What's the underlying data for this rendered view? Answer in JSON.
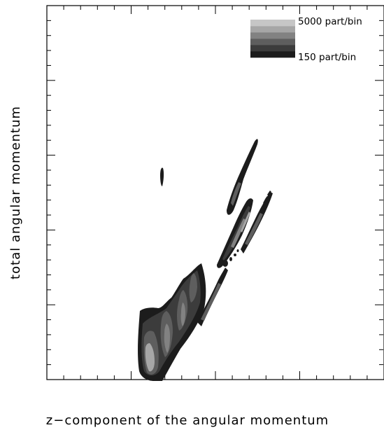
{
  "chart_data": {
    "type": "heatmap",
    "xlabel": "z−component of the angular momentum",
    "ylabel": "total angular momentum",
    "legend": {
      "placement": "top-right",
      "max_label": "5000 part/bin",
      "min_label": "150 part/bin",
      "levels": [
        150,
        500,
        1000,
        2000,
        3500,
        5000
      ],
      "colors": [
        "#1c1c1c",
        "#3c3c3c",
        "#5e5e5e",
        "#828282",
        "#a6a6a6",
        "#c6c6c6"
      ]
    },
    "grid": false
  }
}
